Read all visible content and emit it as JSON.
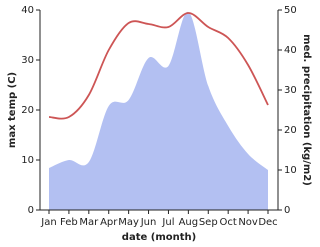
{
  "chart_data": {
    "type": "line-area",
    "x_label": "date (month)",
    "y_label": "max temp (C)",
    "y2_label": "med. precipitation (kg/m2)",
    "categories": [
      "Jan",
      "Feb",
      "Mar",
      "Apr",
      "May",
      "Jun",
      "Jul",
      "Aug",
      "Sep",
      "Oct",
      "Nov",
      "Dec"
    ],
    "ylim": [
      0,
      40
    ],
    "yticks": [
      0,
      10,
      20,
      30,
      40
    ],
    "y2lim": [
      0,
      50
    ],
    "y2ticks": [
      0,
      10,
      20,
      30,
      40,
      50
    ],
    "series": [
      {
        "name": "max temp",
        "color": "#cd5555",
        "values": [
          18.6,
          18.6,
          23,
          32,
          37.4,
          37.2,
          36.6,
          39.4,
          36.6,
          34.4,
          29,
          21
        ]
      },
      {
        "name": "med. precipitation",
        "color": "#b3c0f2",
        "axis": "y2",
        "values": [
          10.5,
          12.5,
          12,
          26,
          27.5,
          38,
          36,
          49.5,
          31,
          21,
          14,
          10
        ]
      }
    ]
  }
}
